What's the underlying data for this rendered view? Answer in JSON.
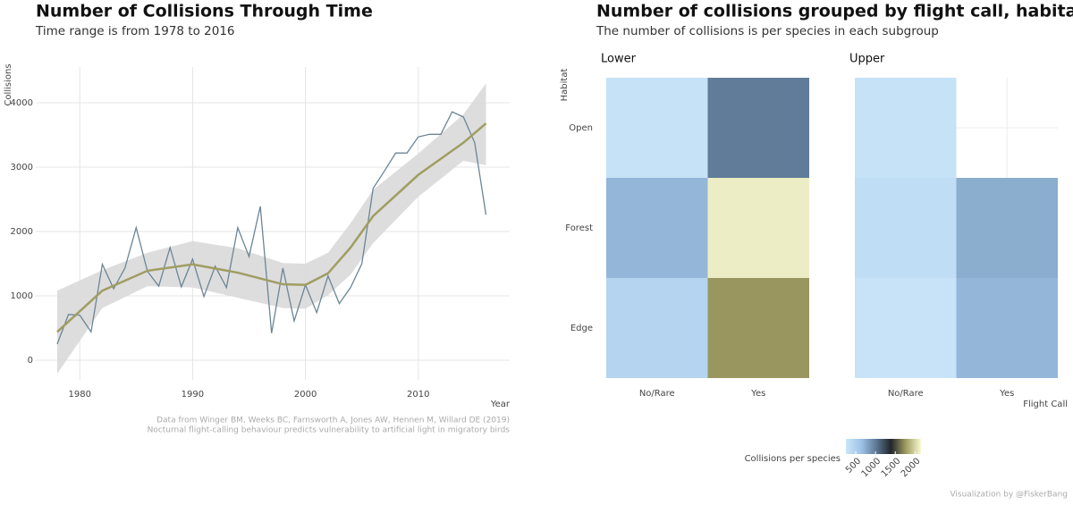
{
  "chart_data": [
    {
      "type": "line",
      "title": "Number of Collisions Through Time",
      "subtitle": "Time range is from 1978 to 2016",
      "ylabel": "Collisions",
      "xlabel": "Year",
      "x": [
        1978,
        1979,
        1980,
        1981,
        1982,
        1983,
        1984,
        1985,
        1986,
        1987,
        1988,
        1989,
        1990,
        1991,
        1992,
        1993,
        1994,
        1995,
        1996,
        1997,
        1998,
        1999,
        2000,
        2001,
        2002,
        2003,
        2004,
        2005,
        2006,
        2007,
        2008,
        2009,
        2010,
        2011,
        2012,
        2013,
        2014,
        2015,
        2016
      ],
      "values": [
        250,
        710,
        700,
        440,
        1490,
        1110,
        1430,
        2060,
        1380,
        1150,
        1750,
        1140,
        1570,
        990,
        1460,
        1130,
        2060,
        1610,
        2390,
        420,
        1430,
        610,
        1170,
        740,
        1310,
        880,
        1130,
        1500,
        2670,
        2940,
        3220,
        3220,
        3470,
        3510,
        3510,
        3860,
        3780,
        3380,
        2260
      ],
      "color": "#6b8596",
      "smooth": {
        "x": [
          1978,
          1982,
          1986,
          1990,
          1994,
          1998,
          2000,
          2002,
          2004,
          2006,
          2010,
          2014,
          2016
        ],
        "values": [
          440,
          1080,
          1390,
          1490,
          1360,
          1180,
          1170,
          1350,
          1750,
          2240,
          2880,
          3380,
          3680
        ],
        "lower": [
          -210,
          810,
          1150,
          1130,
          970,
          810,
          800,
          1010,
          1330,
          1820,
          2540,
          3100,
          3030
        ],
        "upper": [
          1080,
          1400,
          1670,
          1850,
          1740,
          1510,
          1500,
          1670,
          2130,
          2650,
          3210,
          3820,
          4300
        ],
        "color": "#a09d62",
        "band_color": "#d9d9d9"
      },
      "xlim": [
        1976.1,
        2018.1
      ],
      "ylim": [
        -306,
        4556
      ],
      "xticks": [
        1980,
        1990,
        2000,
        2010
      ],
      "yticks": [
        0,
        1000,
        2000,
        3000,
        4000
      ],
      "grid": true,
      "caption": [
        "Data from Winger BM, Weeks BC, Farnsworth A, Jones AW, Hennen M, Willard DE (2019)",
        "Nocturnal flight-calling behaviour predicts vulnerability to artificial light in migratory birds"
      ]
    },
    {
      "type": "heatmap",
      "title": "Number of collisions grouped by flight call, habitat and stratum",
      "subtitle": "The number of collisions is per species in each subgroup",
      "xlabel": "Flight Call",
      "ylabel": "Habitat",
      "facets": [
        "Lower",
        "Upper"
      ],
      "categories": [
        "No/Rare",
        "Yes"
      ],
      "rows": [
        "Open",
        "Forest",
        "Edge"
      ],
      "values": [
        [
          [
            300,
            1000
          ],
          [
            700,
            2100
          ],
          [
            450,
            1750
          ]
        ],
        [
          [
            300,
            null
          ],
          [
            350,
            750
          ],
          [
            280,
            700
          ]
        ]
      ],
      "zlim": [
        250,
        2150
      ],
      "colorscale": [
        "#cbe6f8",
        "#9fc4e8",
        "#5f7a96",
        "#22262b",
        "#a09d62",
        "#f8f9d3"
      ],
      "legend_title": "Collisions per species",
      "ticks": [
        500,
        1000,
        1500,
        2000
      ],
      "caption": "Visualization by @FiskerBang"
    }
  ]
}
